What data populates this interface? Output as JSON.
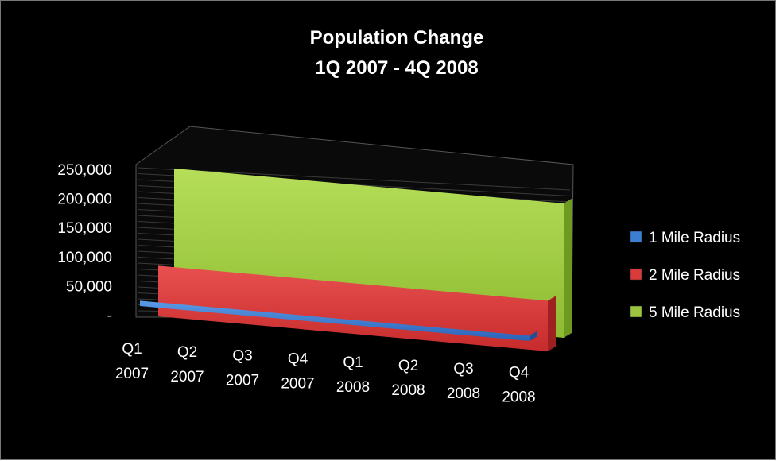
{
  "chart_data": {
    "type": "area",
    "style": "3d",
    "title_lines": [
      "Population Change",
      "1Q 2007 - 4Q 2008"
    ],
    "categories": [
      [
        "Q1",
        "2007"
      ],
      [
        "Q2",
        "2007"
      ],
      [
        "Q3",
        "2007"
      ],
      [
        "Q4",
        "2007"
      ],
      [
        "Q1",
        "2008"
      ],
      [
        "Q2",
        "2008"
      ],
      [
        "Q3",
        "2008"
      ],
      [
        "Q4",
        "2008"
      ]
    ],
    "ylim": [
      0,
      250000
    ],
    "yticks": [
      "-",
      "50,000",
      "100,000",
      "150,000",
      "200,000",
      "250,000"
    ],
    "series": [
      {
        "name": "1 Mile Radius",
        "color": "#3b7fd4",
        "values": [
          9000,
          9000,
          9000,
          9000,
          9000,
          9000,
          9000,
          9000
        ]
      },
      {
        "name": "2 Mile Radius",
        "color": "#d93a3a",
        "values": [
          87000,
          87000,
          87000,
          87000,
          87000,
          87000,
          87000,
          87000
        ]
      },
      {
        "name": "5 Mile Radius",
        "color": "#9bc43f",
        "values": [
          231000,
          231000,
          231000,
          231000,
          231000,
          231000,
          231000,
          231000
        ]
      }
    ],
    "legend_position": "right",
    "grid": true,
    "background": "#000000"
  }
}
